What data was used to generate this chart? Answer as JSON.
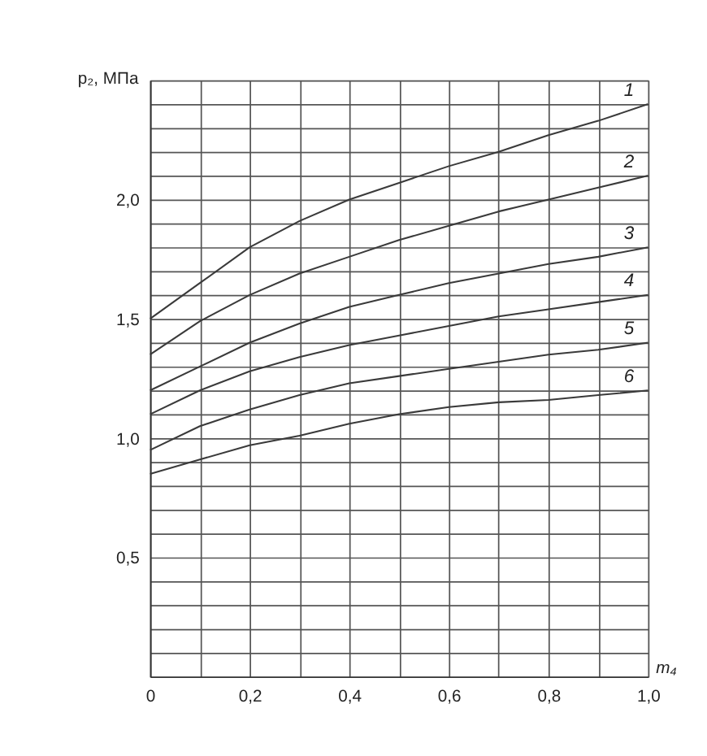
{
  "chart_data": {
    "type": "line",
    "xlabel": "m₄",
    "ylabel": "p₂, МПа",
    "x": [
      0,
      0.1,
      0.2,
      0.3,
      0.4,
      0.5,
      0.6,
      0.7,
      0.8,
      0.9,
      1.0
    ],
    "series": [
      {
        "name": "1",
        "color": "#3a3a3a",
        "values": [
          1.5,
          1.65,
          1.8,
          1.91,
          2.0,
          2.07,
          2.14,
          2.2,
          2.27,
          2.33,
          2.4
        ]
      },
      {
        "name": "2",
        "color": "#3a3a3a",
        "values": [
          1.35,
          1.49,
          1.6,
          1.69,
          1.76,
          1.83,
          1.89,
          1.95,
          2.0,
          2.05,
          2.1
        ]
      },
      {
        "name": "3",
        "color": "#3a3a3a",
        "values": [
          1.2,
          1.3,
          1.4,
          1.48,
          1.55,
          1.6,
          1.65,
          1.69,
          1.73,
          1.76,
          1.8
        ]
      },
      {
        "name": "4",
        "color": "#3a3a3a",
        "values": [
          1.1,
          1.2,
          1.28,
          1.34,
          1.39,
          1.43,
          1.47,
          1.51,
          1.54,
          1.57,
          1.6
        ]
      },
      {
        "name": "5",
        "color": "#3a3a3a",
        "values": [
          0.95,
          1.05,
          1.12,
          1.18,
          1.23,
          1.26,
          1.29,
          1.32,
          1.35,
          1.37,
          1.4
        ]
      },
      {
        "name": "6",
        "color": "#3a3a3a",
        "values": [
          0.85,
          0.91,
          0.97,
          1.01,
          1.06,
          1.1,
          1.13,
          1.15,
          1.16,
          1.18,
          1.2
        ]
      }
    ],
    "xlim": [
      0,
      1.0
    ],
    "xticks": [
      0,
      {
        "value": 0.1,
        "label": null
      },
      {
        "value": 0.2,
        "label": "0,2"
      },
      {
        "value": 0.3,
        "label": null
      },
      {
        "value": 0.4,
        "label": "0,4"
      },
      {
        "value": 0.5,
        "label": null
      },
      {
        "value": 0.6,
        "label": "0,6"
      },
      {
        "value": 0.7,
        "label": null
      },
      {
        "value": 0.8,
        "label": "0,8"
      },
      {
        "value": 0.9,
        "label": null
      },
      {
        "value": 1.0,
        "label": "1,0"
      }
    ],
    "ylim": [
      0,
      2.5
    ],
    "yticks": [
      {
        "value": 0.1,
        "label": null
      },
      {
        "value": 0.2,
        "label": null
      },
      {
        "value": 0.3,
        "label": null
      },
      {
        "value": 0.4,
        "label": null
      },
      {
        "value": 0.5,
        "label": "0,5"
      },
      {
        "value": 0.6,
        "label": null
      },
      {
        "value": 0.7,
        "label": null
      },
      {
        "value": 0.8,
        "label": null
      },
      {
        "value": 0.9,
        "label": null
      },
      {
        "value": 1.0,
        "label": "1,0"
      },
      {
        "value": 1.1,
        "label": null
      },
      {
        "value": 1.2,
        "label": null
      },
      {
        "value": 1.3,
        "label": null
      },
      {
        "value": 1.4,
        "label": null
      },
      {
        "value": 1.5,
        "label": "1,5"
      },
      {
        "value": 1.6,
        "label": null
      },
      {
        "value": 1.7,
        "label": null
      },
      {
        "value": 1.8,
        "label": null
      },
      {
        "value": 1.9,
        "label": null
      },
      {
        "value": 2.0,
        "label": "2,0"
      },
      {
        "value": 2.1,
        "label": null
      },
      {
        "value": 2.2,
        "label": null
      },
      {
        "value": 2.3,
        "label": null
      },
      {
        "value": 2.4,
        "label": null
      },
      {
        "value": 2.5,
        "label": null
      }
    ],
    "grid": true,
    "marker": "none",
    "line_style": "solid",
    "legend": false
  }
}
